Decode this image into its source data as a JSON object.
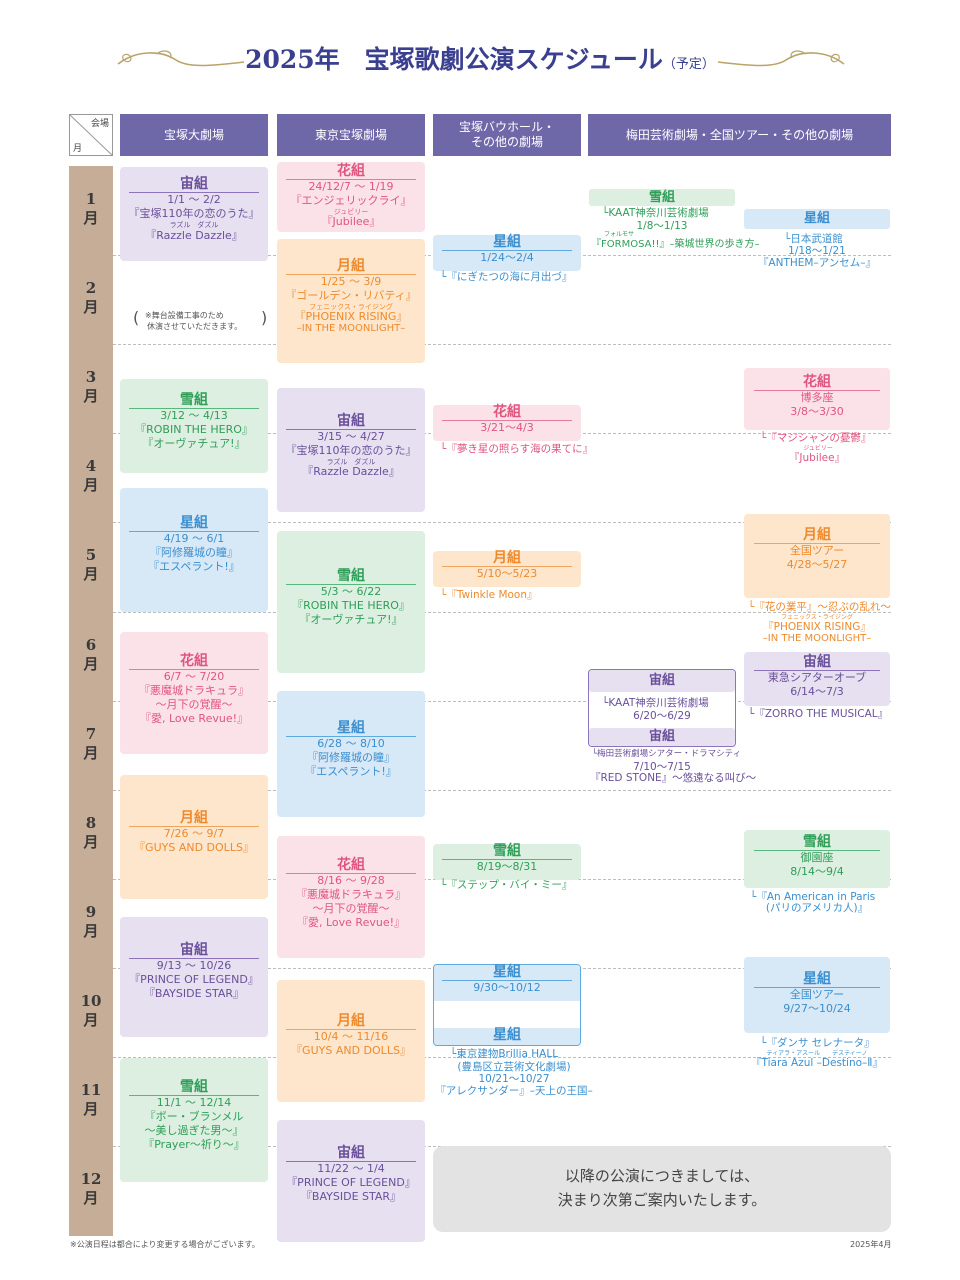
{
  "title": {
    "main": "2025年　宝塚歌劇公演スケジュール",
    "suffix": "（予定）"
  },
  "corner": {
    "venue": "会場",
    "month": "月"
  },
  "headers": [
    "宝塚大劇場",
    "東京宝塚劇場",
    "宝塚バウホール・\nその他の劇場",
    "梅田芸術劇場・全国ツアー・その他の劇場"
  ],
  "months": [
    "1\n月",
    "2\n月",
    "3\n月",
    "4\n月",
    "5\n月",
    "6\n月",
    "7\n月",
    "8\n月",
    "9\n月",
    "10\n月",
    "11\n月",
    "12\n月"
  ],
  "colors": {
    "sora": "#6a4f9a",
    "hana": "#e0557f",
    "tsuki": "#ee8a2c",
    "yuki": "#2f9e58",
    "hoshi": "#3b8fcf",
    "header": "#6e68a8",
    "month_column": "#c6ad97"
  },
  "takarazuka": [
    {
      "troupe": "宙組",
      "dates": "1/1 ～ 2/2",
      "lines": [
        "『宝塚110年の恋のうた』",
        "ラズル　ダズル",
        "『Razzle Dazzle』"
      ]
    },
    {
      "troupe": "雪組",
      "dates": "3/12 ～ 4/13",
      "lines": [
        "『ROBIN THE HERO』",
        "『オーヴァチュア!』"
      ]
    },
    {
      "troupe": "星組",
      "dates": "4/19 ～ 6/1",
      "lines": [
        "『阿修羅城の瞳』",
        "『エスペラント!』"
      ]
    },
    {
      "troupe": "花組",
      "dates": "6/7 ～ 7/20",
      "lines": [
        "『悪魔城ドラキュラ』",
        "～月下の覚醒～",
        "『愛, Love Revue!』"
      ]
    },
    {
      "troupe": "月組",
      "dates": "7/26 ～ 9/7",
      "lines": [
        "『GUYS AND DOLLS』"
      ]
    },
    {
      "troupe": "宙組",
      "dates": "9/13 ～ 10/26",
      "lines": [
        "『PRINCE OF LEGEND』",
        "『BAYSIDE STAR』"
      ]
    },
    {
      "troupe": "雪組",
      "dates": "11/1 ～ 12/14",
      "lines": [
        "『ボー・ブランメル",
        "～美し過ぎた男～』",
        "『Prayer～祈り～』"
      ]
    }
  ],
  "closure_note": [
    "※舞台設備工事のため",
    "休演させていただきます。"
  ],
  "tokyo": [
    {
      "troupe": "花組",
      "dates": "24/12/7 ～ 1/19",
      "lines": [
        "『エンジェリックライ』",
        "ジュビリー",
        "『Jubilee』"
      ]
    },
    {
      "troupe": "月組",
      "dates": "1/25 ～ 3/9",
      "lines": [
        "『ゴールデン・リバティ』",
        "フェニックス・ライジング",
        "『PHOENIX RISING』",
        "–IN THE MOONLIGHT–"
      ]
    },
    {
      "troupe": "宙組",
      "dates": "3/15 ～ 4/27",
      "lines": [
        "『宝塚110年の恋のうた』",
        "ラズル　ダズル",
        "『Razzle Dazzle』"
      ]
    },
    {
      "troupe": "雪組",
      "dates": "5/3 ～ 6/22",
      "lines": [
        "『ROBIN THE HERO』",
        "『オーヴァチュア!』"
      ]
    },
    {
      "troupe": "星組",
      "dates": "6/28 ～ 8/10",
      "lines": [
        "『阿修羅城の瞳』",
        "『エスペラント!』"
      ]
    },
    {
      "troupe": "花組",
      "dates": "8/16 ～ 9/28",
      "lines": [
        "『悪魔城ドラキュラ』",
        "～月下の覚醒～",
        "『愛, Love Revue!』"
      ]
    },
    {
      "troupe": "月組",
      "dates": "10/4 ～ 11/16",
      "lines": [
        "『GUYS AND DOLLS』"
      ]
    },
    {
      "troupe": "宙組",
      "dates": "11/22 ～ 1/4",
      "lines": [
        "『PRINCE OF LEGEND』",
        "『BAYSIDE STAR』"
      ]
    }
  ],
  "bow": [
    {
      "troupe": "星組",
      "dates": "1/24～2/4",
      "title": "└『にぎたつの海に月出づ』"
    },
    {
      "troupe": "花組",
      "dates": "3/21～4/3",
      "title": "└『夢き星の照らす海の果てに』"
    },
    {
      "troupe": "月組",
      "dates": "5/10～5/23",
      "title": "└『Twinkle Moon』"
    },
    {
      "troupe": "雪組",
      "dates": "8/19～8/31",
      "title": "└『ステップ・バイ・ミー』"
    },
    {
      "troupe": "星組",
      "dates": "9/30～10/12",
      "troupe2": "星組",
      "venue": "└東京建物Brillia HALL",
      "venue2": "(豊島区立芸術文化劇場)",
      "dates2": "10/21～10/27",
      "title": "『アレクサンダー』–天上の王国–"
    }
  ],
  "umeda": [
    {
      "troupe": "雪組",
      "venue": "└KAAT神奈川芸術劇場",
      "dates": "1/8～1/13",
      "ruby": "フォルモサ",
      "title": "『FORMOSA!!』–築城世界の歩き方–"
    },
    {
      "troupe": "星組",
      "venue": "└日本武道館",
      "dates": "1/18～1/21",
      "title": "『ANTHEM–アンセム–』"
    },
    {
      "troupe": "花組",
      "venue": "博多座",
      "dates": "3/8～3/30",
      "title": "└『マジシャンの憂鬱』",
      "ruby": "ジュビリー",
      "title2": "『Jubilee』"
    },
    {
      "troupe": "月組",
      "venue": "全国ツアー",
      "dates": "4/28～5/27",
      "title": "└『花の業平』～忍ぶの乱れ～",
      "ruby": "フェニックス・ライジング",
      "title2": "『PHOENIX RISING』",
      "title3": "–IN THE MOONLIGHT–"
    },
    {
      "troupe": "宙組",
      "venue": "└KAAT神奈川芸術劇場",
      "dates": "6/20～6/29",
      "troupe2": "宙組",
      "venue2": "└梅田芸術劇場シアター・ドラマシティ",
      "dates2": "7/10～7/15",
      "title": "『RED STONE』～悠遠なる叫び～"
    },
    {
      "troupe": "宙組",
      "venue": "東急シアターオーブ",
      "dates": "6/14～7/3",
      "title": "└『ZORRO THE MUSICAL』"
    },
    {
      "troupe": "雪組",
      "venue": "御園座",
      "dates": "8/14～9/4",
      "title": "└『An American in Paris",
      "title2": "(パリのアメリカ人)』"
    },
    {
      "troupe": "星組",
      "venue": "全国ツアー",
      "dates": "9/27～10/24",
      "title": "└『ダンサ セレナータ』",
      "ruby": "ティアラ・アスール　　デスティーノ",
      "title2": "『Tiara Azul –Destino–Ⅱ』"
    }
  ],
  "later_notice": [
    "以降の公演につきましては、",
    "決まり次第ご案内いたします。"
  ],
  "footer": {
    "left": "※公演日程は都合により変更する場合がございます。",
    "right": "2025年4月"
  }
}
